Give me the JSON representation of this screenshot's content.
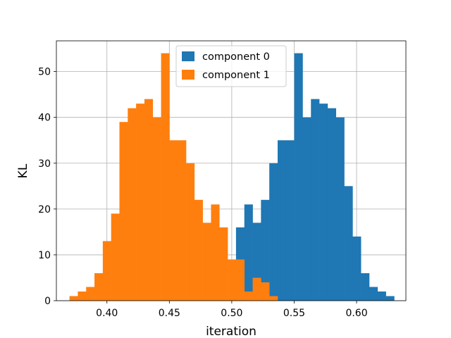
{
  "chart_data": {
    "type": "bar",
    "subtype": "overlaid-histogram",
    "title": "",
    "xlabel": "iteration",
    "ylabel": "KL",
    "xlim": [
      0.3595,
      0.6395
    ],
    "ylim": [
      0,
      56.7
    ],
    "xticks": [
      0.4,
      0.45,
      0.5,
      0.55,
      0.6
    ],
    "xtick_labels": [
      "0.40",
      "0.45",
      "0.50",
      "0.55",
      "0.60"
    ],
    "yticks": [
      0,
      10,
      20,
      30,
      40,
      50
    ],
    "ytick_labels": [
      "0",
      "10",
      "20",
      "30",
      "40",
      "50"
    ],
    "grid": true,
    "legend": "upper center",
    "series": [
      {
        "name": "component 0",
        "color": "#1f77b4",
        "bin_start": 0.37,
        "bin_width": 0.00667,
        "values": [
          0,
          0,
          0,
          0,
          0,
          0,
          0,
          0,
          0,
          0,
          0,
          0,
          0,
          0,
          0,
          0,
          0,
          0,
          0,
          0,
          16,
          21,
          17,
          22,
          30,
          35,
          35,
          54,
          40,
          44,
          43,
          42,
          40,
          25,
          14,
          6,
          3,
          2,
          1
        ]
      },
      {
        "name": "component 1",
        "color": "#ff7f0e",
        "bin_start": 0.37,
        "bin_width": 0.00667,
        "values": [
          1,
          2,
          3,
          6,
          13,
          19,
          39,
          42,
          43,
          44,
          40,
          54,
          35,
          35,
          30,
          22,
          17,
          21,
          16,
          0,
          0,
          0,
          0,
          0,
          0,
          0,
          0,
          0,
          0,
          0,
          0,
          0,
          0,
          0,
          0,
          0,
          0,
          0,
          0
        ]
      }
    ],
    "series_overlay_values": [
      0,
      0,
      0,
      0,
      0,
      0,
      0,
      0,
      0,
      0,
      0,
      0,
      0,
      0,
      0,
      0,
      0,
      0,
      0,
      9,
      9,
      2,
      5,
      4,
      1,
      0,
      0,
      0,
      0,
      0,
      0,
      0,
      0,
      0,
      0,
      0,
      0,
      0,
      0
    ]
  }
}
